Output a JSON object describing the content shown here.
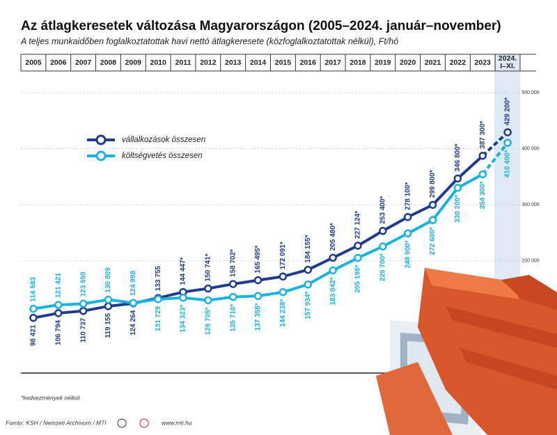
{
  "chart_data": {
    "type": "line",
    "title": "Az átlagkeresetek változása Magyarországon (2005–2024. január–november)",
    "subtitle": "A teljes munkaidőben foglalkoztatottak havi nettó átlagkeresete (közfoglalkoztatottak nélkül), Ft/hó",
    "categories": [
      "2005",
      "2006",
      "2007",
      "2008",
      "2009",
      "2010",
      "2011",
      "2012",
      "2013",
      "2014",
      "2015",
      "2016",
      "2017",
      "2018",
      "2019",
      "2020",
      "2021",
      "2022",
      "2023",
      "2024. I–XI."
    ],
    "series": [
      {
        "name": "vállalkozások összesen",
        "color": "#1f3b8f",
        "values": [
          98421,
          106794,
          110737,
          119155,
          124264,
          133755,
          144447,
          150741,
          158702,
          165495,
          172091,
          184155,
          205480,
          227124,
          253400,
          278100,
          299800,
          346800,
          387300,
          429200
        ],
        "value_labels": [
          "98 421",
          "106 794",
          "110 737",
          "119 155",
          "124 264",
          "133 755",
          "144 447*",
          "150 741*",
          "158 702*",
          "165 495*",
          "172 091*",
          "184 155*",
          "205 480*",
          "227 124*",
          "253 400*",
          "278 100*",
          "299 800*",
          "346 800*",
          "387 300*",
          "429 200*"
        ]
      },
      {
        "name": "költségvetés összesen",
        "color": "#19b2e3",
        "values": [
          114583,
          121421,
          123559,
          130809,
          124998,
          131729,
          134323,
          129705,
          135710,
          137358,
          144238,
          157934,
          183042,
          205198,
          225700,
          248900,
          272600,
          330200,
          354300,
          410400
        ],
        "value_labels": [
          "114 583",
          "121 421",
          "123 559",
          "130 809",
          "124 998",
          "131 729",
          "134 323*",
          "129 705*",
          "135 710*",
          "137 358*",
          "144 238*",
          "157 934*",
          "183 042*",
          "205 198*",
          "225 700*",
          "248 900*",
          "272 600*",
          "330 200*",
          "354 300*",
          "410 400*"
        ]
      }
    ],
    "ylim": [
      0,
      540000
    ],
    "yticks": [
      {
        "value": 200000,
        "label": "200 000"
      },
      {
        "value": 300000,
        "label": "300 000"
      },
      {
        "value": 400000,
        "label": "400 000"
      },
      {
        "value": 500000,
        "label": "500 000"
      }
    ],
    "grid": true,
    "footnote": "*kedvezmények nélkül",
    "source": "Forrás: KSH / Nemzeti Archívum / MTI",
    "website": "www.mti.hu"
  }
}
